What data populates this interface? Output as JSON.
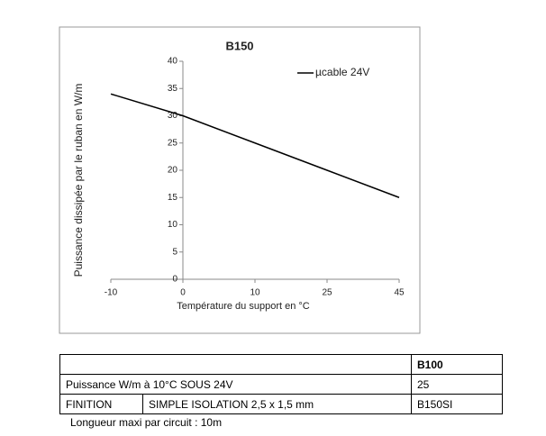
{
  "chart_data": {
    "type": "line",
    "title": "B150",
    "x_label": "Température du support en °C",
    "y_label": "Puissance dissipée par le ruban en W/m",
    "categories": [
      "-10",
      "0",
      "10",
      "25",
      "45"
    ],
    "series": [
      {
        "name": "µcable 24V",
        "color": "#000000",
        "values": [
          34,
          30,
          25,
          20,
          15
        ]
      }
    ],
    "ylim": [
      0,
      40
    ],
    "yticks": [
      0,
      5,
      10,
      15,
      20,
      25,
      30,
      35,
      40
    ],
    "grid": false,
    "legend": "top-right"
  },
  "table": {
    "header": "B100",
    "rows": [
      [
        "Puissance W/m à 10°C SOUS 24V",
        "25"
      ],
      [
        "FINITION",
        "SIMPLE ISOLATION 2,5 x 1,5 mm",
        "B150SI"
      ]
    ]
  },
  "note": "Longueur maxi par circuit : 10m"
}
